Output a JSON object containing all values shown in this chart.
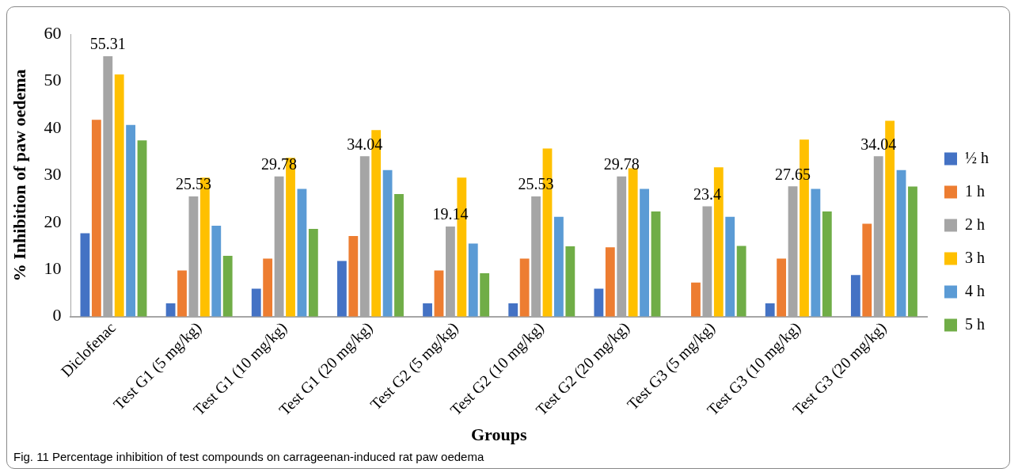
{
  "chart_data": {
    "type": "bar",
    "xlabel": "Groups",
    "ylabel": "% Inhibition of paw oedema",
    "categories": [
      "Diclofenac",
      "Test G1 (5 mg/kg)",
      "Test G1 (10 mg/kg)",
      "Test G1 (20 mg/kg)",
      "Test G2 (5 mg/kg)",
      "Test G2 (10 mg/kg)",
      "Test G2 (20 mg/kg)",
      "Test G3 (5 mg/kg)",
      "Test G3 (10 mg/kg)",
      "Test G3 (20 mg/kg)"
    ],
    "series": [
      {
        "name": "½ h",
        "color": "#4472c4",
        "values": [
          17.7,
          2.8,
          5.9,
          11.8,
          2.8,
          2.8,
          5.9,
          0,
          2.8,
          8.8
        ]
      },
      {
        "name": "1 h",
        "color": "#ed7d31",
        "values": [
          41.8,
          9.8,
          12.3,
          17.1,
          9.8,
          12.3,
          14.7,
          7.2,
          12.3,
          19.7
        ]
      },
      {
        "name": "2 h",
        "color": "#a5a5a5",
        "values": [
          55.31,
          25.53,
          29.78,
          34.04,
          19.14,
          25.53,
          29.78,
          23.4,
          27.65,
          34.04
        ],
        "value_labels": [
          "55.31",
          "25.53",
          "29.78",
          "34.04",
          "19.14",
          "25.53",
          "29.78",
          "23.4",
          "27.65",
          "34.04"
        ]
      },
      {
        "name": "3 h",
        "color": "#ffc000",
        "values": [
          51.4,
          29.5,
          33.7,
          39.6,
          29.5,
          35.7,
          31.5,
          31.7,
          37.6,
          41.6
        ]
      },
      {
        "name": "4 h",
        "color": "#5b9bd5",
        "values": [
          40.7,
          19.3,
          27.1,
          31.1,
          15.5,
          21.2,
          27.1,
          21.2,
          27.1,
          31.1
        ]
      },
      {
        "name": "5 h",
        "color": "#70ad47",
        "values": [
          37.4,
          12.9,
          18.6,
          26.0,
          9.2,
          14.9,
          22.3,
          15.0,
          22.3,
          27.6
        ]
      }
    ],
    "ylim": [
      0,
      60
    ],
    "yticks": [
      0,
      10,
      20,
      30,
      40,
      50,
      60
    ],
    "grid": false,
    "legend": "right",
    "annotations": [
      "Fig. 11 Percentage inhibition of test compounds on carrageenan-induced rat paw oedema"
    ]
  }
}
